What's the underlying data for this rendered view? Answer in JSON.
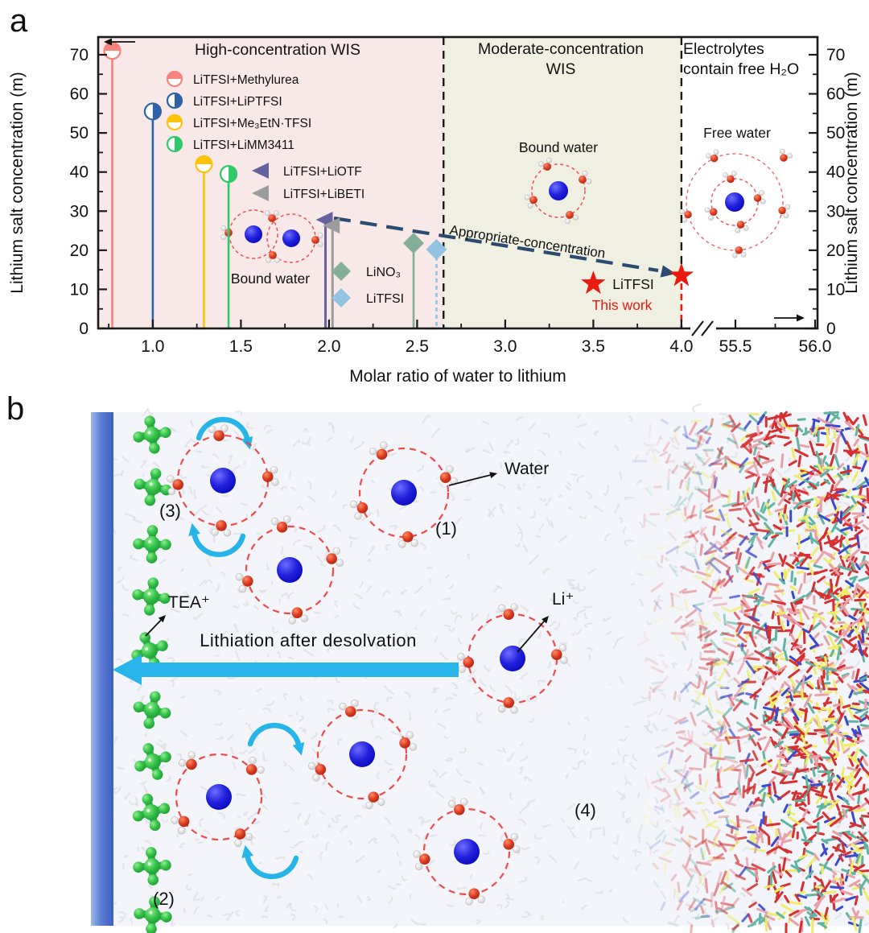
{
  "figure": {
    "panel_a_label": "a",
    "panel_b_label": "b"
  },
  "chart_data": {
    "type": "lollipop-scatter",
    "xlabel": "Molar ratio of water to lithium",
    "ylabel_left": "Lithium salt concentration (m)",
    "ylabel_right": "Lithium salt concentration (m)",
    "x_ticks_main": [
      "1.0",
      "1.5",
      "2.0",
      "2.5",
      "3.0",
      "3.5",
      "4.0"
    ],
    "x_tick_values_main": [
      1.0,
      1.5,
      2.0,
      2.5,
      3.0,
      3.5,
      4.0
    ],
    "x_ticks_after_break": [
      "55.5",
      "56.0"
    ],
    "x_tick_values_after_break": [
      55.5,
      56.0
    ],
    "x_minor_values": [
      0.75,
      1.25,
      1.75,
      2.25,
      2.75,
      3.25,
      3.75,
      55.75
    ],
    "axis_break_between": [
      4.0,
      55.5
    ],
    "y_ticks": [
      0,
      10,
      20,
      30,
      40,
      50,
      60,
      70
    ],
    "y_minor": [
      5,
      15,
      25,
      35,
      45,
      55,
      65
    ],
    "y_range": [
      0,
      74.5
    ],
    "regions": [
      {
        "label_line1": "High-concentration WIS",
        "label_line2": "",
        "x_start": 0.69,
        "x_end": 2.65,
        "fill": "#f8e9e8"
      },
      {
        "label_line1": "Moderate-concentration",
        "label_line2": "WIS",
        "x_start": 2.65,
        "x_end": 4.0,
        "fill": "#eff0e2"
      },
      {
        "label_line1": "Electrolytes",
        "label_line2": "contain free H₂O",
        "x_start": 4.0,
        "x_end": 56.05,
        "fill": "#ffffff"
      }
    ],
    "series": [
      {
        "name": "LiTFSI+Methylurea",
        "marker": "half-circle-h",
        "color": "#f5837b",
        "x": 0.77,
        "y": 71
      },
      {
        "name": "LiTFSI+LiPTFSI",
        "marker": "half-circle-v",
        "color": "#2d62a8",
        "x": 1.0,
        "y": 55.5
      },
      {
        "name": "LiTFSI+Me₃EtN·TFSI",
        "marker": "half-circle-h",
        "color": "#fcc20c",
        "x": 1.29,
        "y": 42
      },
      {
        "name": "LiTFSI+LiMM3411",
        "marker": "half-circle-v",
        "color": "#2fc96b",
        "x": 1.43,
        "y": 39.5
      },
      {
        "name": "LiTFSI+LiOTF",
        "marker": "triangle-left",
        "color": "#66619f",
        "x": 1.98,
        "y": 27.8
      },
      {
        "name": "LiTFSI+LiBETI",
        "marker": "triangle-left",
        "color": "#9c9c9c",
        "x": 2.02,
        "y": 26.3
      },
      {
        "name": "LiNO₃",
        "marker": "diamond",
        "color": "#83ae97",
        "x": 2.48,
        "y": 21.8
      },
      {
        "name": "LiTFSI",
        "marker": "diamond",
        "color": "#92c3e2",
        "x": 2.61,
        "y": 20.2,
        "stem": "dashed"
      },
      {
        "name": "LiTFSI (this work)",
        "marker": "star",
        "color": "#ea1a0f",
        "x": 3.5,
        "y": 11.5,
        "stem": "none"
      },
      {
        "name": "LiTFSI (this work)",
        "marker": "star",
        "color": "#ea1a0f",
        "x": 4.0,
        "y": 13.5,
        "stem": "dashed-red"
      }
    ],
    "legend_groups": {
      "circles": [
        0,
        1,
        2,
        3
      ],
      "triangles": [
        4,
        5
      ],
      "diamonds": [
        6,
        7
      ]
    },
    "annotations": {
      "appropriate_concentration": "Appropriate-concentration",
      "bound_water_left": "Bound water",
      "bound_water_mid": "Bound water",
      "free_water": "Free water",
      "this_work_name": "LiTFSI",
      "this_work_sub": "This work"
    },
    "colors": {
      "frame": "#1a1a1a",
      "boundary_dash": "#1a1a1a",
      "red_dash": "#ea1a0f",
      "navy_arrow": "#2b4a70"
    }
  },
  "panel_b": {
    "labels": {
      "water": "Water",
      "li": "Li⁺",
      "tea": "TEA⁺",
      "n1": "(1)",
      "n2": "(2)",
      "n3": "(3)",
      "n4": "(4)",
      "main_arrow": "Lithiation after desolvation"
    },
    "colors": {
      "electrode_light": "#9db9ea",
      "electrode_mid": "#5c7fd4",
      "electrode_dark": "#3c5fc0",
      "cyan": "#27b4e8",
      "tea_green": "#35c24a",
      "li_blue": "#1b1bd9",
      "water_o": "#d93a20",
      "water_h": "#e6e6e6",
      "shell_dash": "#ee3f3f",
      "squiggle": "#dcdce2",
      "bg": "#f4f5fb",
      "md_palette": [
        "#d63031",
        "#e9a1a8",
        "#5fb3a1",
        "#efec68",
        "#3949d0"
      ]
    }
  }
}
